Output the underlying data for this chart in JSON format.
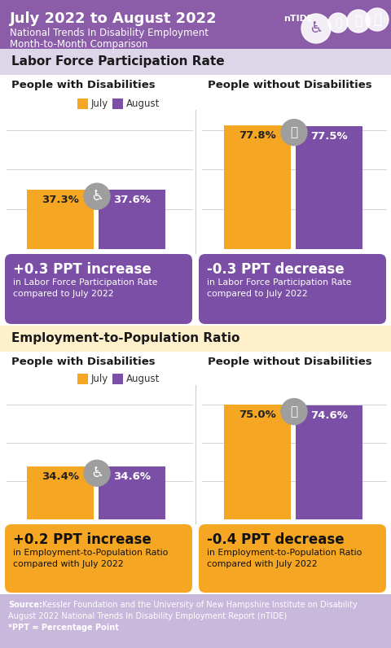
{
  "title_line1": "July 2022 to August 2022",
  "title_sub1": "National Trends In Disability Employment",
  "title_sub2": "Month-to-Month Comparison",
  "header_bg": "#8B5CA8",
  "section1_bg": "#DDD5E8",
  "section2_bg": "#FFF0CC",
  "source_bg": "#C8B8DC",
  "white_bg": "#FFFFFF",
  "orange": "#F5A623",
  "purple": "#7B4FA6",
  "gray_icon": "#9E9E9E",
  "dark_text": "#1A1A1A",
  "section1_title": "Labor Force Participation Rate",
  "section2_title": "Employment-to-Population Ratio",
  "lfpr_pwd_july": 37.3,
  "lfpr_pwd_aug": 37.6,
  "lfpr_pwod_july": 77.8,
  "lfpr_pwod_aug": 77.5,
  "epr_pwd_july": 34.4,
  "epr_pwd_aug": 34.6,
  "epr_pwod_july": 75.0,
  "epr_pwod_aug": 74.6,
  "lfpr_pwd_change": "+0.3 PPT increase",
  "lfpr_pwd_change_sub": "in Labor Force Participation Rate\ncompared to July 2022",
  "lfpr_pwod_change": "-0.3 PPT decrease",
  "lfpr_pwod_change_sub": "in Labor Force Participation Rate\ncompared to July 2022",
  "epr_pwd_change": "+0.2 PPT increase",
  "epr_pwd_change_sub": "in Employment-to-Population Ratio\ncompared with July 2022",
  "epr_pwod_change": "-0.4 PPT decrease",
  "epr_pwod_change_sub": "in Employment-to-Population Ratio\ncompared with July 2022",
  "source_bold": "Source:",
  "source_rest": " Kessler Foundation and the University of New Hampshire Institute on Disability\nAugust 2022 National Trends In Disability Employment Report (nTIDE)",
  "source_ppt": "*PPT = Percentage Point",
  "people_with_dis": "People with Disabilities",
  "people_without_dis": "People without Disabilities",
  "july_label": "July",
  "aug_label": "August",
  "lfpr_cbox_color": "#7B4FA6",
  "epr_cbox_color": "#F5A623"
}
